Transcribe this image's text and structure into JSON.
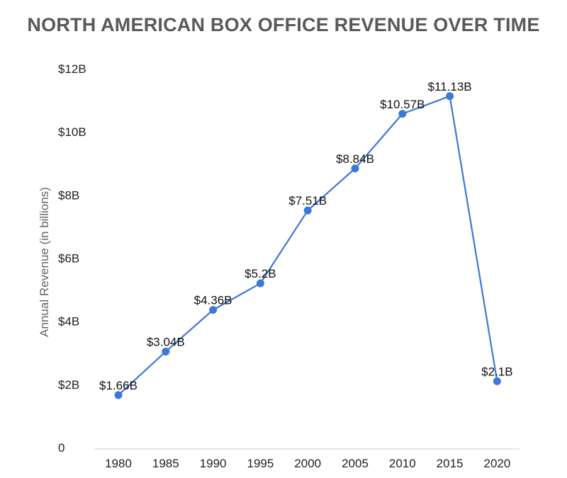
{
  "chart_data": {
    "type": "line",
    "title": "NORTH AMERICAN BOX OFFICE REVENUE OVER TIME",
    "xlabel": "",
    "ylabel": "Annual Revenue (in billions)",
    "categories": [
      "1980",
      "1985",
      "1990",
      "1995",
      "2000",
      "2005",
      "2010",
      "2015",
      "2020"
    ],
    "series": [
      {
        "values": [
          1.66,
          3.04,
          4.36,
          5.2,
          7.51,
          8.84,
          10.57,
          11.13,
          2.1
        ],
        "data_labels": [
          "$1.66B",
          "$3.04B",
          "$4.36B",
          "$5.2B",
          "$7.51B",
          "$8.84B",
          "$10.57B",
          "$11.13B",
          "$2.1B"
        ]
      }
    ],
    "ylim": [
      0,
      12
    ],
    "yticks": [
      0,
      2,
      4,
      6,
      8,
      10,
      12
    ],
    "ytick_labels": [
      "0",
      "$2B",
      "$4B",
      "$6B",
      "$8B",
      "$10B",
      "$12B"
    ],
    "grid": false,
    "legend": "none",
    "colors": {
      "line": "#3C78D8",
      "point": "#3C78D8",
      "axis": "#cccccc"
    }
  }
}
